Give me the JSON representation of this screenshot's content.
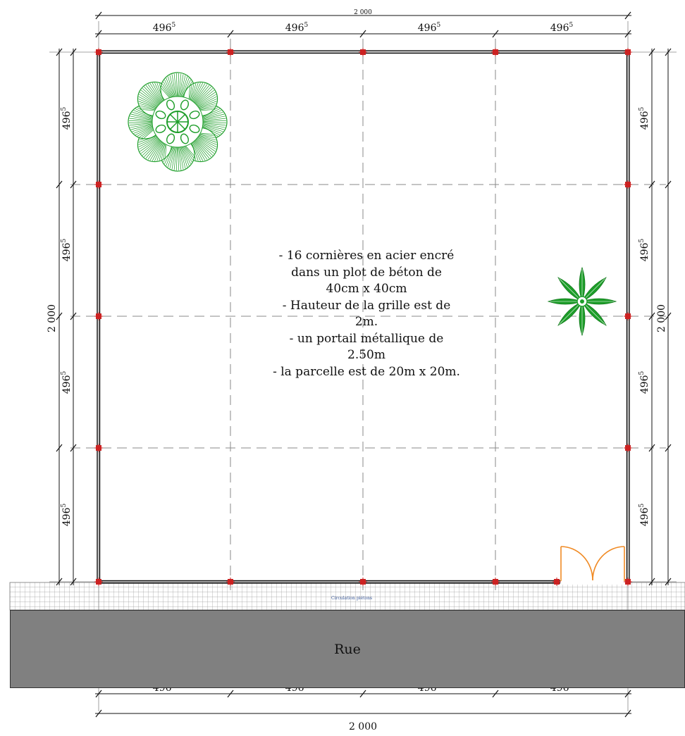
{
  "plan": {
    "total_width_label": "2 000",
    "total_height_label": "2 000",
    "bay_label_base": "496",
    "bay_label_sup": "5",
    "street_label": "Rue",
    "sidewalk_label": "Circulation piétons",
    "notes": [
      "- 16 cornières en acier encré",
      "dans un plot de béton de",
      "40cm x 40cm",
      "- Hauteur de la grille est de",
      "2m.",
      "- un portail métallique de",
      "2.50m",
      "- la parcelle est de 20m x 20m."
    ]
  },
  "colors": {
    "post": "#cc2222",
    "fence": "#111111",
    "gridline": "#888888",
    "tree": "#1e9e2a",
    "gate": "#f08a24",
    "street": "#808080"
  },
  "icons": [
    "tree-canopy-icon",
    "palm-plant-icon",
    "gate-icon"
  ]
}
